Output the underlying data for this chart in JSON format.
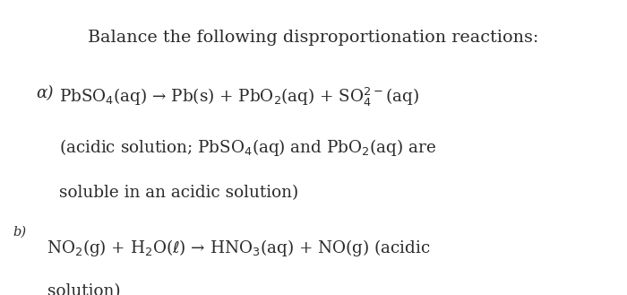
{
  "background_color": "#ffffff",
  "text_color": "#2b2b2b",
  "title": "Balance the following disproportionation reactions:",
  "line_a1": "PbSO$_4$(aq) → Pb(s) + PbO$_2$(aq) + SO$_4^{2-}$(aq)",
  "line_a2": "(acidic solution; PbSO$_4$(aq) and PbO$_2$(aq) are",
  "line_a3": "soluble in an acidic solution)",
  "line_b1": "NO$_2$(g) + H$_2$O($\\ell$) → HNO$_3$(aq) + NO(g) (acidic",
  "line_b2": "solution)",
  "label_a": "α)",
  "label_b": "b)",
  "figsize": [
    7.0,
    3.29
  ],
  "dpi": 100,
  "font_size_title": 13.8,
  "font_size_body": 13.2,
  "font_size_label_a": 13.2,
  "font_size_label_b": 10.5
}
